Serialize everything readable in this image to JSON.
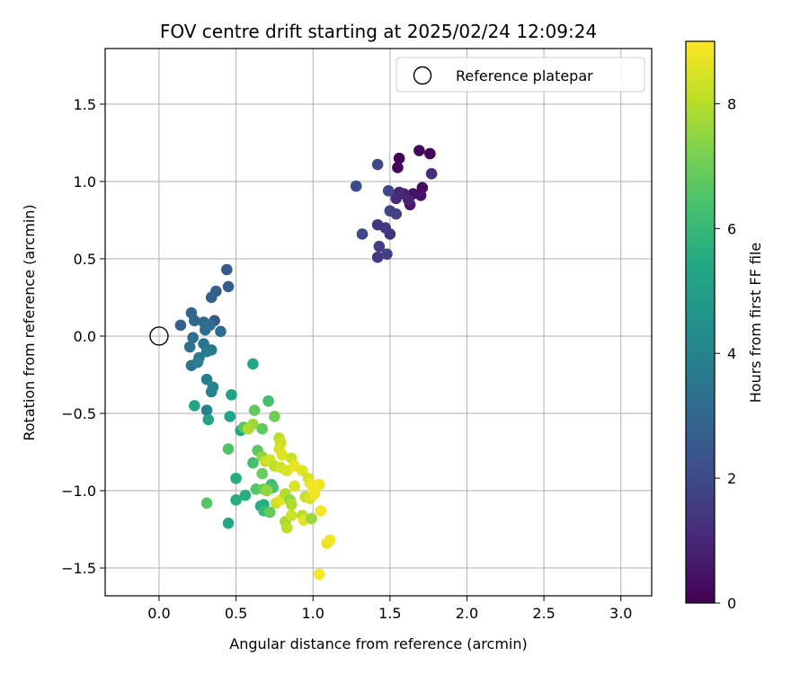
{
  "chart_data": {
    "type": "scatter",
    "title": "FOV centre drift starting at 2025/02/24 12:09:24",
    "xlabel": "Angular distance from reference (arcmin)",
    "ylabel": "Rotation from reference (arcmin)",
    "xlim": [
      -0.35,
      3.2
    ],
    "ylim": [
      -1.68,
      1.86
    ],
    "xticks": [
      0.0,
      0.5,
      1.0,
      1.5,
      2.0,
      2.5,
      3.0
    ],
    "xtick_labels": [
      "0.0",
      "0.5",
      "1.0",
      "1.5",
      "2.0",
      "2.5",
      "3.0"
    ],
    "yticks": [
      -1.5,
      -1.0,
      -0.5,
      0.0,
      0.5,
      1.0,
      1.5
    ],
    "ytick_labels": [
      "−1.5",
      "−1.0",
      "−0.5",
      "0.0",
      "0.5",
      "1.0",
      "1.5"
    ],
    "grid": true,
    "legend": {
      "placement": "upper-right",
      "entries": [
        "Reference platepar"
      ]
    },
    "reference_point": {
      "x": 0.0,
      "y": 0.0,
      "label": "Reference platepar"
    },
    "colorbar": {
      "label": "Hours from first FF file",
      "colormap": "viridis",
      "range": [
        0,
        9
      ],
      "ticks": [
        0,
        2,
        4,
        6,
        8
      ],
      "tick_labels": [
        "0",
        "2",
        "4",
        "6",
        "8"
      ]
    },
    "points": [
      {
        "x": 1.56,
        "y": 1.15,
        "c": 0.1
      },
      {
        "x": 1.69,
        "y": 1.2,
        "c": 0.2
      },
      {
        "x": 1.76,
        "y": 1.18,
        "c": 0.1
      },
      {
        "x": 1.55,
        "y": 1.09,
        "c": 0.2
      },
      {
        "x": 1.71,
        "y": 0.96,
        "c": 0.3
      },
      {
        "x": 1.65,
        "y": 0.92,
        "c": 0.4
      },
      {
        "x": 1.7,
        "y": 0.91,
        "c": 0.5
      },
      {
        "x": 1.63,
        "y": 0.85,
        "c": 0.6
      },
      {
        "x": 1.59,
        "y": 0.92,
        "c": 0.8
      },
      {
        "x": 1.62,
        "y": 0.88,
        "c": 0.9
      },
      {
        "x": 1.56,
        "y": 0.93,
        "c": 1.0
      },
      {
        "x": 1.54,
        "y": 0.89,
        "c": 1.1
      },
      {
        "x": 1.77,
        "y": 1.05,
        "c": 1.2
      },
      {
        "x": 1.5,
        "y": 0.66,
        "c": 1.3
      },
      {
        "x": 1.47,
        "y": 0.7,
        "c": 1.4
      },
      {
        "x": 1.42,
        "y": 0.72,
        "c": 1.5
      },
      {
        "x": 1.43,
        "y": 0.58,
        "c": 1.6
      },
      {
        "x": 1.42,
        "y": 0.51,
        "c": 1.5
      },
      {
        "x": 1.48,
        "y": 0.53,
        "c": 1.7
      },
      {
        "x": 1.5,
        "y": 0.81,
        "c": 1.8
      },
      {
        "x": 1.54,
        "y": 0.79,
        "c": 1.8
      },
      {
        "x": 1.49,
        "y": 0.94,
        "c": 1.9
      },
      {
        "x": 1.42,
        "y": 1.11,
        "c": 2.0
      },
      {
        "x": 1.28,
        "y": 0.97,
        "c": 2.1
      },
      {
        "x": 1.32,
        "y": 0.66,
        "c": 2.0
      },
      {
        "x": 0.44,
        "y": 0.43,
        "c": 2.5
      },
      {
        "x": 0.45,
        "y": 0.32,
        "c": 2.6
      },
      {
        "x": 0.37,
        "y": 0.29,
        "c": 2.7
      },
      {
        "x": 0.34,
        "y": 0.25,
        "c": 2.8
      },
      {
        "x": 0.14,
        "y": 0.07,
        "c": 2.8
      },
      {
        "x": 0.21,
        "y": 0.15,
        "c": 2.9
      },
      {
        "x": 0.23,
        "y": 0.1,
        "c": 3.0
      },
      {
        "x": 0.29,
        "y": 0.09,
        "c": 3.1
      },
      {
        "x": 0.36,
        "y": 0.1,
        "c": 2.5
      },
      {
        "x": 0.4,
        "y": 0.03,
        "c": 3.2
      },
      {
        "x": 0.3,
        "y": 0.04,
        "c": 3.2
      },
      {
        "x": 0.33,
        "y": 0.07,
        "c": 3.3
      },
      {
        "x": 0.22,
        "y": -0.01,
        "c": 3.4
      },
      {
        "x": 0.2,
        "y": -0.07,
        "c": 3.3
      },
      {
        "x": 0.29,
        "y": -0.05,
        "c": 3.5
      },
      {
        "x": 0.34,
        "y": -0.09,
        "c": 3.6
      },
      {
        "x": 0.26,
        "y": -0.14,
        "c": 3.6
      },
      {
        "x": 0.31,
        "y": -0.1,
        "c": 3.7
      },
      {
        "x": 0.21,
        "y": -0.19,
        "c": 3.4
      },
      {
        "x": 0.25,
        "y": -0.17,
        "c": 3.8
      },
      {
        "x": 0.31,
        "y": -0.28,
        "c": 3.9
      },
      {
        "x": 0.35,
        "y": -0.33,
        "c": 4.0
      },
      {
        "x": 0.34,
        "y": -0.36,
        "c": 4.0
      },
      {
        "x": 0.31,
        "y": -0.48,
        "c": 3.9
      },
      {
        "x": 0.32,
        "y": -0.54,
        "c": 5.2
      },
      {
        "x": 0.23,
        "y": -0.45,
        "c": 5.3
      },
      {
        "x": 0.47,
        "y": -0.38,
        "c": 5.2
      },
      {
        "x": 0.46,
        "y": -0.52,
        "c": 5.3
      },
      {
        "x": 0.61,
        "y": -0.18,
        "c": 5.4
      },
      {
        "x": 0.71,
        "y": -0.42,
        "c": 6.3
      },
      {
        "x": 0.62,
        "y": -0.48,
        "c": 6.8
      },
      {
        "x": 0.75,
        "y": -0.52,
        "c": 7.0
      },
      {
        "x": 0.61,
        "y": -0.57,
        "c": 7.7
      },
      {
        "x": 0.53,
        "y": -0.61,
        "c": 5.4
      },
      {
        "x": 0.55,
        "y": -0.59,
        "c": 6.7
      },
      {
        "x": 0.58,
        "y": -0.6,
        "c": 7.9
      },
      {
        "x": 0.67,
        "y": -0.6,
        "c": 6.8
      },
      {
        "x": 0.45,
        "y": -0.73,
        "c": 6.5
      },
      {
        "x": 0.64,
        "y": -0.74,
        "c": 6.7
      },
      {
        "x": 0.67,
        "y": -0.78,
        "c": 7.5
      },
      {
        "x": 0.69,
        "y": -0.81,
        "c": 8.2
      },
      {
        "x": 0.72,
        "y": -0.8,
        "c": 8.4
      },
      {
        "x": 0.78,
        "y": -0.66,
        "c": 8.0
      },
      {
        "x": 0.79,
        "y": -0.69,
        "c": 8.3
      },
      {
        "x": 0.78,
        "y": -0.73,
        "c": 8.5
      },
      {
        "x": 0.8,
        "y": -0.77,
        "c": 8.6
      },
      {
        "x": 0.75,
        "y": -0.84,
        "c": 8.1
      },
      {
        "x": 0.79,
        "y": -0.85,
        "c": 8.4
      },
      {
        "x": 0.83,
        "y": -0.87,
        "c": 8.5
      },
      {
        "x": 0.86,
        "y": -0.79,
        "c": 8.3
      },
      {
        "x": 0.88,
        "y": -0.84,
        "c": 8.7
      },
      {
        "x": 0.61,
        "y": -0.82,
        "c": 6.3
      },
      {
        "x": 0.67,
        "y": -0.89,
        "c": 6.9
      },
      {
        "x": 0.73,
        "y": -0.96,
        "c": 6.2
      },
      {
        "x": 0.74,
        "y": -0.98,
        "c": 6.4
      },
      {
        "x": 0.63,
        "y": -0.99,
        "c": 6.6
      },
      {
        "x": 0.68,
        "y": -0.99,
        "c": 7.0
      },
      {
        "x": 0.7,
        "y": -1.0,
        "c": 7.5
      },
      {
        "x": 0.5,
        "y": -0.92,
        "c": 5.5
      },
      {
        "x": 0.56,
        "y": -1.03,
        "c": 5.6
      },
      {
        "x": 0.5,
        "y": -1.06,
        "c": 5.5
      },
      {
        "x": 0.31,
        "y": -1.08,
        "c": 6.6
      },
      {
        "x": 0.45,
        "y": -1.21,
        "c": 5.4
      },
      {
        "x": 0.66,
        "y": -1.1,
        "c": 5.5
      },
      {
        "x": 0.68,
        "y": -1.09,
        "c": 5.6
      },
      {
        "x": 0.68,
        "y": -1.13,
        "c": 6.0
      },
      {
        "x": 0.72,
        "y": -1.14,
        "c": 6.8
      },
      {
        "x": 0.76,
        "y": -1.08,
        "c": 8.3
      },
      {
        "x": 0.79,
        "y": -1.06,
        "c": 8.6
      },
      {
        "x": 0.82,
        "y": -1.02,
        "c": 8.0
      },
      {
        "x": 0.85,
        "y": -1.06,
        "c": 7.5
      },
      {
        "x": 0.86,
        "y": -1.09,
        "c": 7.9
      },
      {
        "x": 0.88,
        "y": -0.97,
        "c": 8.5
      },
      {
        "x": 0.93,
        "y": -0.87,
        "c": 8.6
      },
      {
        "x": 0.97,
        "y": -0.92,
        "c": 8.4
      },
      {
        "x": 0.98,
        "y": -0.95,
        "c": 8.7
      },
      {
        "x": 1.04,
        "y": -0.96,
        "c": 8.8
      },
      {
        "x": 0.95,
        "y": -1.04,
        "c": 8.2
      },
      {
        "x": 0.98,
        "y": -1.05,
        "c": 8.5
      },
      {
        "x": 1.0,
        "y": -0.98,
        "c": 8.9
      },
      {
        "x": 1.01,
        "y": -1.02,
        "c": 8.8
      },
      {
        "x": 0.82,
        "y": -1.2,
        "c": 7.8
      },
      {
        "x": 0.83,
        "y": -1.24,
        "c": 8.1
      },
      {
        "x": 0.86,
        "y": -1.16,
        "c": 8.3
      },
      {
        "x": 0.93,
        "y": -1.16,
        "c": 8.0
      },
      {
        "x": 0.94,
        "y": -1.19,
        "c": 8.6
      },
      {
        "x": 0.99,
        "y": -1.18,
        "c": 7.6
      },
      {
        "x": 1.05,
        "y": -1.13,
        "c": 8.9
      },
      {
        "x": 1.09,
        "y": -1.34,
        "c": 8.7
      },
      {
        "x": 1.11,
        "y": -1.32,
        "c": 8.8
      },
      {
        "x": 1.04,
        "y": -1.54,
        "c": 8.9
      }
    ]
  }
}
